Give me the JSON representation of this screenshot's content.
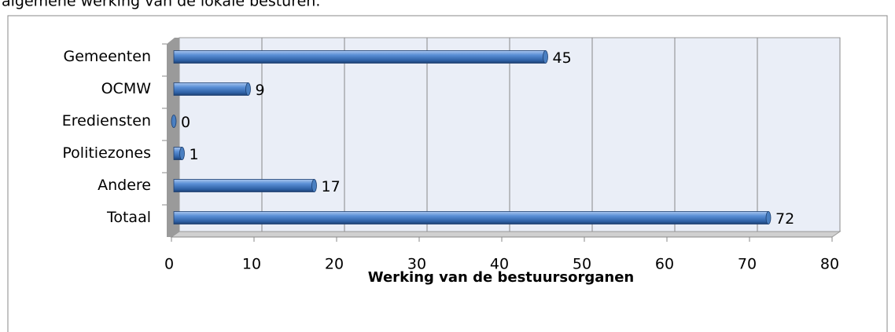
{
  "caption": "algemene werking van de lokale besturen.",
  "chart_data": {
    "type": "bar",
    "orientation": "horizontal",
    "xlabel": "Werking van de bestuursorganen",
    "categories": [
      "Gemeenten",
      "OCMW",
      "Erediensten",
      "Politiezones",
      "Andere",
      "Totaal"
    ],
    "values": [
      45,
      9,
      0,
      1,
      17,
      72
    ],
    "color": "#4a7fc1",
    "xlim": [
      0,
      80
    ],
    "xticks": [
      0,
      10,
      20,
      30,
      40,
      50,
      60,
      70,
      80
    ],
    "grid": true
  }
}
